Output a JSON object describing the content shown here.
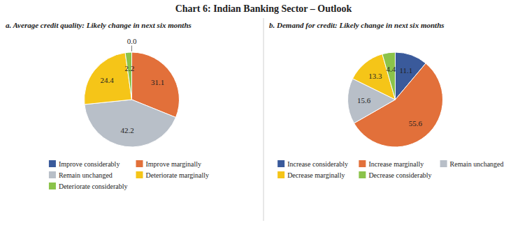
{
  "title": "Chart 6: Indian Banking Sector – Outlook",
  "chart_data": [
    {
      "type": "pie",
      "title": "a. Average credit quality: Likely change in next six months",
      "categories": [
        "Improve considerably",
        "Improve marginally",
        "Remain unchanged",
        "Deteriorate marginally",
        "Deteriorate considerably"
      ],
      "values": [
        0.0,
        31.1,
        42.2,
        24.4,
        2.2
      ],
      "value_labels": [
        "0.0",
        "31.1",
        "42.2",
        "24.4",
        "2.2"
      ],
      "colors": [
        "#3a5a9b",
        "#e2703a",
        "#b8bfc8",
        "#f5c518",
        "#8bc34a"
      ],
      "data_labels": true,
      "legend": "bottom"
    },
    {
      "type": "pie",
      "title": "b. Demand for credit: Likely change in next six months",
      "categories": [
        "Increase considerably",
        "Increase marginally",
        "Remain unchanged",
        "Decrease marginally",
        "Decrease considerably"
      ],
      "values": [
        11.1,
        55.6,
        15.6,
        13.3,
        4.4
      ],
      "value_labels": [
        "11.1",
        "55.6",
        "15.6",
        "13.3",
        "4.4"
      ],
      "colors": [
        "#3a5a9b",
        "#e2703a",
        "#b8bfc8",
        "#f5c518",
        "#8bc34a"
      ],
      "data_labels": true,
      "legend": "bottom"
    }
  ]
}
